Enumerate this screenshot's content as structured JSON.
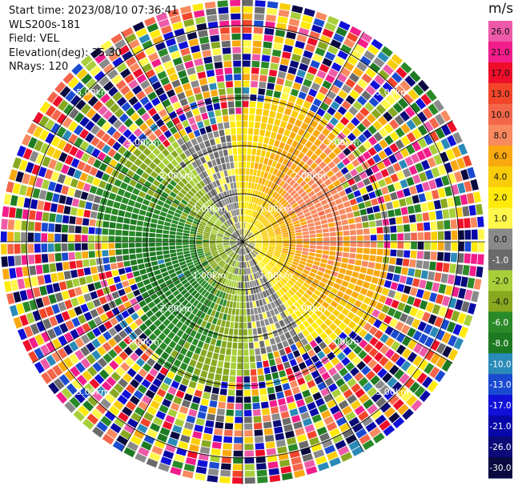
{
  "header": {
    "start_time": "Start time: 2023/08/10 07:36:41",
    "station": "WLS200s-181",
    "field": "Field: VEL",
    "elevation": "Elevation(deg): 35.30",
    "nrays": "NRays: 120"
  },
  "chart_data": {
    "type": "heatmap",
    "projection": "polar-ppi",
    "field": "VEL",
    "units": "m/s",
    "nrays": 120,
    "elevation_deg": 35.3,
    "range_rings": [
      "1.00km",
      "2.00km",
      "3.00km",
      "5.00km"
    ],
    "colorbar": {
      "ticks": [
        "26.0",
        "21.0",
        "17.0",
        "13.0",
        "10.0",
        "8.0",
        "6.0",
        "4.0",
        "2.0",
        "1.0",
        "0.0",
        "-1.0",
        "-2.0",
        "-4.0",
        "-6.0",
        "-8.0",
        "-10.0",
        "-13.0",
        "-17.0",
        "-21.0",
        "-26.0",
        "-30.0"
      ],
      "colors": [
        "#ee5aa8",
        "#f21d8a",
        "#ef0e2a",
        "#f2452a",
        "#f4664a",
        "#f98a5f",
        "#f9a90f",
        "#f9cd0a",
        "#ffea0a",
        "#fff74b",
        "#8a8a8a",
        "#6a6a6a",
        "#a8cf3a",
        "#88a820",
        "#2a8a28",
        "#1e7a22",
        "#2a8ab8",
        "#1a4ad0",
        "#1010d8",
        "#0808a8",
        "#0a0a78",
        "#0a0a40"
      ]
    },
    "approximate_wind": {
      "positive_sector_deg": [
        0,
        135
      ],
      "negative_sector_deg": [
        180,
        315
      ],
      "peak_near_range_km": 1.5
    }
  }
}
